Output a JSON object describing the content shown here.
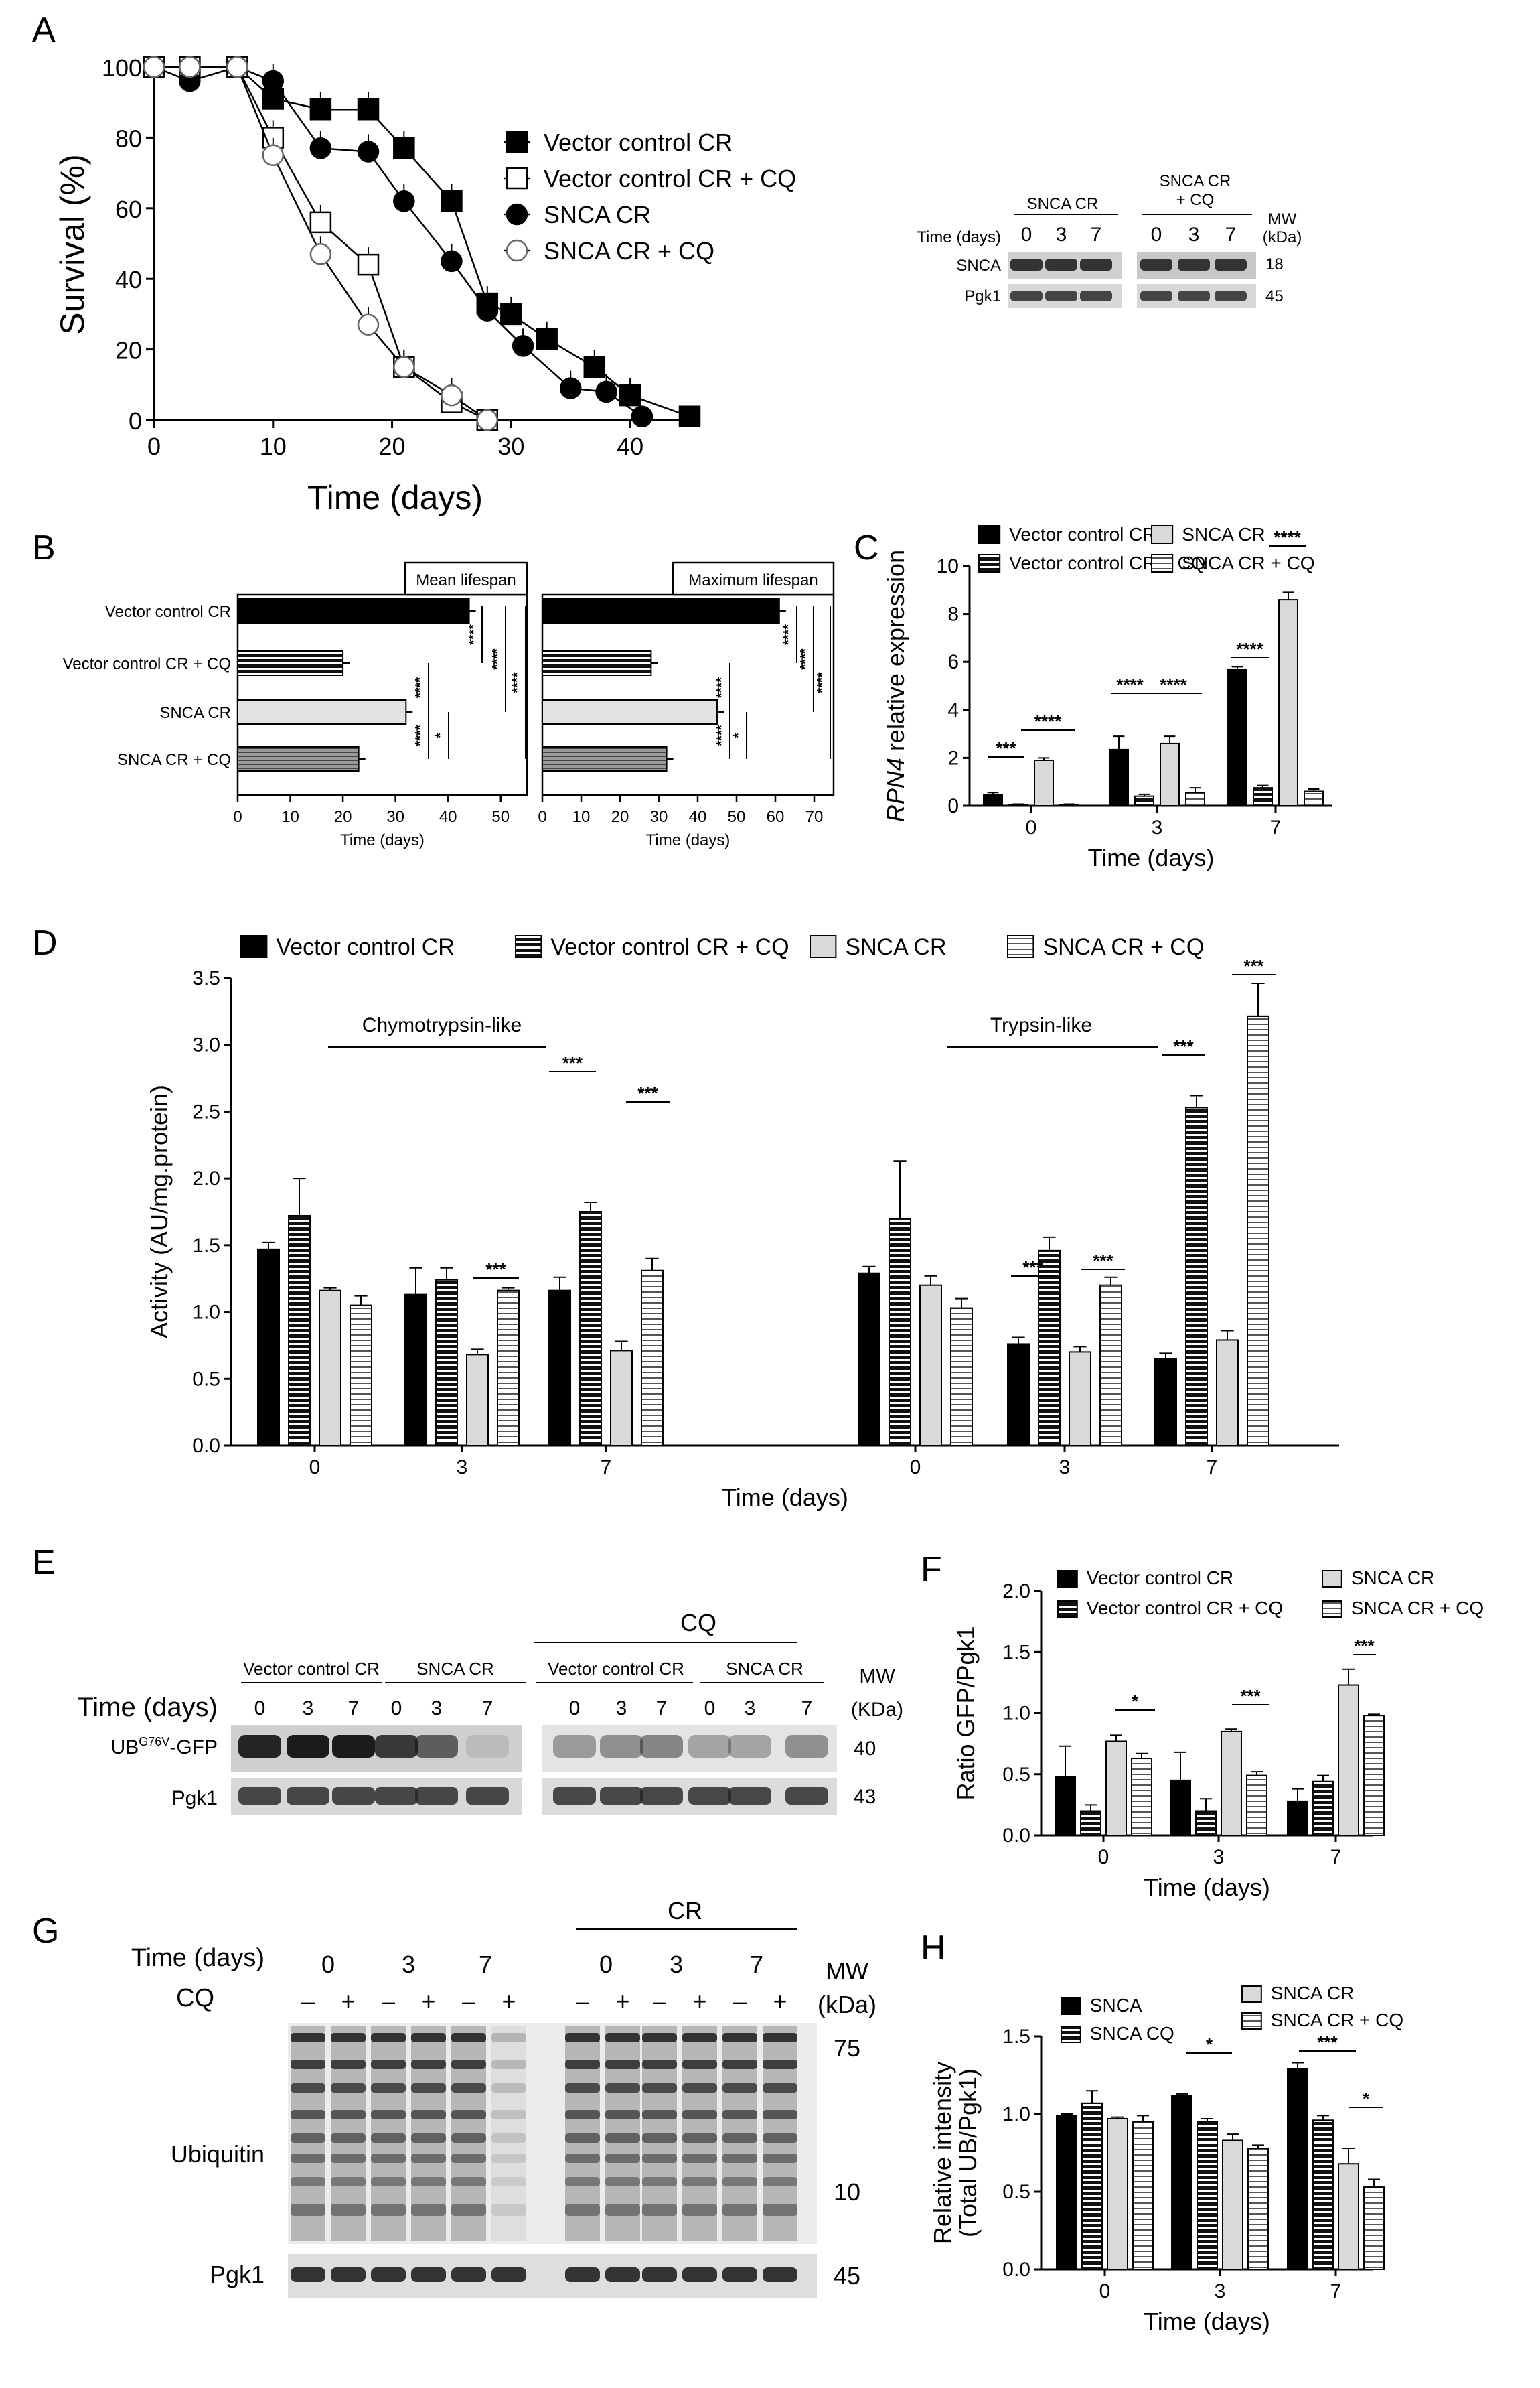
{
  "patterns": {
    "solid": "#000000",
    "hstripe": "stripes-dark",
    "light": "#d9d9d9",
    "lstripe": "stripes-light",
    "dense": "stripes-dense"
  },
  "chart_data": [
    {
      "id": "A",
      "type": "line",
      "label": "A",
      "xlabel": "Time (days)",
      "ylabel": "Survival (%)",
      "xlim": [
        0,
        45
      ],
      "ylim": [
        0,
        100
      ],
      "xticks": [
        "0",
        "10",
        "20",
        "30",
        "40"
      ],
      "yticks": [
        "0",
        "20",
        "40",
        "60",
        "80",
        "100"
      ],
      "legend_position": "right",
      "series": [
        {
          "name": "Vector control CR",
          "marker": "filled-square",
          "x": [
            0,
            3,
            7,
            10,
            14,
            18,
            21,
            25,
            28,
            30,
            33,
            37,
            40,
            45
          ],
          "y": [
            100,
            100,
            100,
            91,
            88,
            88,
            77,
            62,
            33,
            30,
            23,
            15,
            7,
            1
          ]
        },
        {
          "name": "Vector control CR + CQ",
          "marker": "open-square",
          "x": [
            0,
            3,
            7,
            10,
            14,
            18,
            21,
            25,
            28
          ],
          "y": [
            100,
            100,
            100,
            80,
            56,
            44,
            15,
            5,
            0
          ]
        },
        {
          "name": "SNCA CR",
          "marker": "filled-circle",
          "x": [
            0,
            3,
            7,
            10,
            14,
            18,
            21,
            25,
            28,
            31,
            35,
            38,
            41
          ],
          "y": [
            100,
            96,
            100,
            96,
            77,
            76,
            62,
            45,
            31,
            21,
            9,
            8,
            1
          ]
        },
        {
          "name": "SNCA CR + CQ",
          "marker": "open-circle",
          "x": [
            0,
            3,
            7,
            10,
            14,
            18,
            21,
            25,
            28
          ],
          "y": [
            100,
            100,
            100,
            75,
            47,
            27,
            15,
            7,
            0
          ]
        }
      ]
    },
    {
      "id": "B1",
      "type": "bar",
      "label": "B",
      "orientation": "horizontal",
      "title": "Mean lifespan",
      "xlabel": "Time (days)",
      "categories": [
        "Vector control CR",
        "Vector control CR + CQ",
        "SNCA CR",
        "SNCA CR + CQ"
      ],
      "values": [
        44,
        20,
        32,
        23
      ],
      "xlim": [
        0,
        55
      ],
      "xticks": [
        "0",
        "10",
        "20",
        "30",
        "40",
        "50"
      ]
    },
    {
      "id": "B2",
      "type": "bar",
      "orientation": "horizontal",
      "title": "Maximum lifespan",
      "xlabel": "Time (days)",
      "categories": [
        "Vector control CR",
        "Vector control CR + CQ",
        "SNCA CR",
        "SNCA CR + CQ"
      ],
      "values": [
        61,
        28,
        45,
        32
      ],
      "xlim": [
        0,
        75
      ],
      "xticks": [
        "0",
        "10",
        "20",
        "30",
        "40",
        "50",
        "60",
        "70"
      ]
    },
    {
      "id": "C",
      "type": "bar",
      "label": "C",
      "ylabel_italic": "RPN4",
      "ylabel": " relative expression",
      "xlabel": "Time (days)",
      "categories": [
        "0",
        "3",
        "7"
      ],
      "ylim": [
        0,
        10
      ],
      "yticks": [
        "0",
        "2",
        "4",
        "6",
        "8",
        "10"
      ],
      "series": [
        {
          "name": "Vector control CR",
          "values": [
            0.45,
            2.35,
            5.7
          ]
        },
        {
          "name": "Vector control CR + CQ",
          "values": [
            0.05,
            0.4,
            0.75
          ]
        },
        {
          "name": "SNCA CR",
          "values": [
            1.9,
            2.6,
            8.6
          ]
        },
        {
          "name": "SNCA CR + CQ",
          "values": [
            0.05,
            0.55,
            0.6
          ]
        }
      ],
      "sig": [
        "***",
        "****",
        "****",
        "****",
        "****",
        "****"
      ]
    },
    {
      "id": "D",
      "type": "bar",
      "label": "D",
      "ylabel": "Activity (AU/mg.protein)",
      "xlabel": "Time (days)",
      "groups": [
        "Chymotrypsin-like",
        "Trypsin-like"
      ],
      "categories": [
        "0",
        "3",
        "7",
        "0",
        "3",
        "7"
      ],
      "ylim": [
        0,
        3.5
      ],
      "yticks": [
        "0.0",
        "0.5",
        "1.0",
        "1.5",
        "2.0",
        "2.5",
        "3.0",
        "3.5"
      ],
      "series": [
        {
          "name": "Vector control CR",
          "values": [
            1.47,
            1.13,
            1.16,
            1.29,
            0.76,
            0.65
          ]
        },
        {
          "name": "Vector control CR + CQ",
          "values": [
            1.72,
            1.24,
            1.75,
            1.7,
            1.46,
            2.53
          ]
        },
        {
          "name": "SNCA  CR",
          "values": [
            1.16,
            0.68,
            0.71,
            1.2,
            0.7,
            0.79
          ]
        },
        {
          "name": "SNCA CR + CQ",
          "values": [
            1.05,
            1.16,
            1.31,
            1.03,
            1.2,
            3.21
          ]
        }
      ],
      "sig": [
        "***",
        "***",
        "***",
        "***",
        "***",
        "***",
        "***"
      ]
    },
    {
      "id": "F",
      "type": "bar",
      "label": "F",
      "ylabel": "Ratio GFP/Pgk1",
      "xlabel": "Time (days)",
      "categories": [
        "0",
        "3",
        "7"
      ],
      "ylim": [
        0,
        2.0
      ],
      "yticks": [
        "0.0",
        "0.5",
        "1.0",
        "1.5",
        "2.0"
      ],
      "series": [
        {
          "name": "Vector control CR",
          "values": [
            0.48,
            0.45,
            0.28
          ]
        },
        {
          "name": "Vector control CR + CQ",
          "values": [
            0.2,
            0.2,
            0.44
          ]
        },
        {
          "name": "SNCA CR",
          "values": [
            0.77,
            0.85,
            1.23
          ]
        },
        {
          "name": "SNCA CR + CQ",
          "values": [
            0.63,
            0.49,
            0.98
          ]
        }
      ],
      "sig": [
        "*",
        "***",
        "***"
      ]
    },
    {
      "id": "H",
      "type": "bar",
      "label": "H",
      "ylabel": "Relative intensity",
      "ylabel2": "(Total UB/Pgk1)",
      "xlabel": "Time (days)",
      "categories": [
        "0",
        "3",
        "7"
      ],
      "ylim": [
        0,
        1.5
      ],
      "yticks": [
        "0.0",
        "0.5",
        "1.0",
        "1.5"
      ],
      "series": [
        {
          "name": "SNCA",
          "values": [
            0.99,
            1.12,
            1.29
          ]
        },
        {
          "name": "SNCA CQ",
          "values": [
            1.07,
            0.95,
            0.96
          ]
        },
        {
          "name": "SNCA CR",
          "values": [
            0.97,
            0.83,
            0.68
          ]
        },
        {
          "name": "SNCA CR + CQ",
          "values": [
            0.95,
            0.78,
            0.53
          ]
        }
      ],
      "sig": [
        "*",
        "***",
        "*"
      ]
    }
  ],
  "blots": {
    "A_inset": {
      "headers": [
        "SNCA CR",
        "SNCA CR\n+ CQ"
      ],
      "time_label": "Time (days)",
      "times": [
        "0",
        "3",
        "7",
        "0",
        "3",
        "7"
      ],
      "mw_label": "MW\n(kDa)",
      "rows": [
        "SNCA",
        "Pgk1"
      ],
      "mw": [
        "18",
        "45"
      ]
    },
    "E": {
      "label": "E",
      "cq": "CQ",
      "headers": [
        "Vector control CR",
        "SNCA  CR",
        "Vector control CR",
        "SNCA  CR"
      ],
      "time_label": "Time (days)",
      "times": [
        "0",
        "3",
        "7",
        "0",
        "3",
        "7",
        "0",
        "3",
        "7",
        "0",
        "3",
        "7"
      ],
      "mw_label": "MW",
      "mw_unit": "(KDa)",
      "row1": "UB",
      "row1_sup": "G76V",
      "row1_rest": "-GFP",
      "row2": "Pgk1",
      "mw": [
        "40",
        "43"
      ]
    },
    "G": {
      "label": "G",
      "cr": "CR",
      "time_label": "Time (days)",
      "times": [
        "0",
        "3",
        "7",
        "0",
        "3",
        "7"
      ],
      "cq_label": "CQ",
      "signs": [
        "–",
        "+",
        "–",
        "+",
        "–",
        "+",
        "–",
        "+",
        "–",
        "+",
        "–",
        "+"
      ],
      "mw_label": "MW",
      "mw_unit": "(kDa)",
      "rows": [
        "Ubiquitin",
        "Pgk1"
      ],
      "mw": [
        "75",
        "10",
        "45"
      ]
    }
  }
}
